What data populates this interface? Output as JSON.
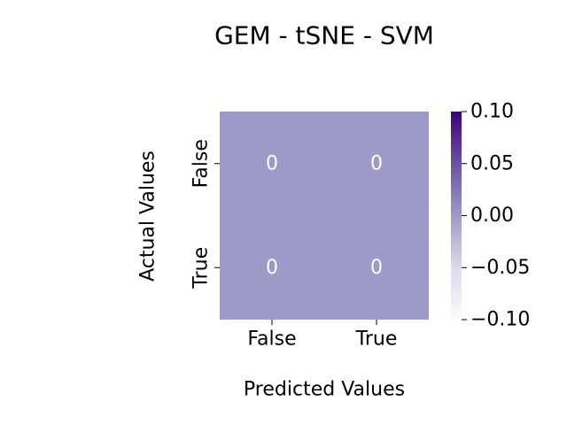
{
  "chart_data": {
    "type": "heatmap",
    "title": "GEM - tSNE - SVM",
    "xlabel": "Predicted Values",
    "ylabel": "Actual Values",
    "x_categories": [
      "False",
      "True"
    ],
    "y_categories": [
      "False",
      "True"
    ],
    "values": [
      [
        0,
        0
      ],
      [
        0,
        0
      ]
    ],
    "colorbar": {
      "min": -0.1,
      "max": 0.1,
      "ticks": [
        "0.10",
        "0.05",
        "0.00",
        "−0.05",
        "−0.10"
      ],
      "colormap": "Purples",
      "color_low": "#fcfbfd",
      "color_mid": "#9e9ac8",
      "color_high": "#3f007d"
    },
    "cell_color": "#9e9ac8",
    "annotation_color": "#ffffff"
  }
}
